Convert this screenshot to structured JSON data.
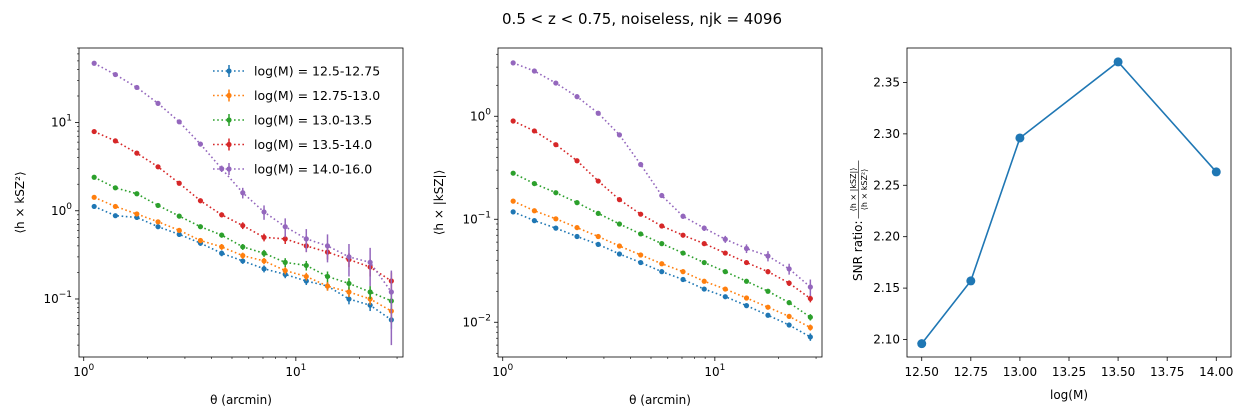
{
  "figure": {
    "title": "0.5 < z < 0.75, noiseless, njk = 4096"
  },
  "chart_data": [
    {
      "type": "line",
      "panel": "left",
      "xscale": "log",
      "yscale": "log",
      "xlabel": "θ (arcmin)",
      "ylabel": "⟨h × kSZ²⟩",
      "xlim": [
        0.95,
        32
      ],
      "ylim": [
        0.022,
        70
      ],
      "xticks": [
        {
          "v": 1,
          "base": "10",
          "exp": "0"
        },
        {
          "v": 10,
          "base": "10",
          "exp": "1"
        }
      ],
      "yticks": [
        {
          "v": 0.1,
          "base": "10",
          "exp": "−1"
        },
        {
          "v": 1,
          "base": "10",
          "exp": "0"
        },
        {
          "v": 10,
          "base": "10",
          "exp": "1"
        }
      ],
      "legend": {
        "position": "top-right"
      },
      "x": [
        1.12,
        1.41,
        1.78,
        2.24,
        2.82,
        3.55,
        4.47,
        5.62,
        7.08,
        8.91,
        11.2,
        14.1,
        17.8,
        22.4,
        28.2
      ],
      "series": [
        {
          "name": "log(M) = 12.5-12.75",
          "color": "#1f77b4",
          "values": [
            1.12,
            0.88,
            0.84,
            0.66,
            0.54,
            0.43,
            0.33,
            0.27,
            0.22,
            0.19,
            0.16,
            0.14,
            0.1,
            0.085,
            0.058
          ],
          "errors": [
            0.06,
            0.05,
            0.05,
            0.04,
            0.035,
            0.03,
            0.025,
            0.02,
            0.02,
            0.018,
            0.016,
            0.015,
            0.013,
            0.012,
            0.012
          ]
        },
        {
          "name": "log(M) = 12.75-13.0",
          "color": "#ff7f0e",
          "values": [
            1.42,
            1.12,
            0.92,
            0.75,
            0.6,
            0.46,
            0.39,
            0.31,
            0.27,
            0.21,
            0.18,
            0.14,
            0.12,
            0.1,
            0.073
          ],
          "errors": [
            0.07,
            0.06,
            0.05,
            0.04,
            0.035,
            0.03,
            0.03,
            0.025,
            0.022,
            0.02,
            0.018,
            0.016,
            0.015,
            0.014,
            0.02
          ]
        },
        {
          "name": "log(M) = 13.0-13.5",
          "color": "#2ca02c",
          "values": [
            2.4,
            1.82,
            1.56,
            1.15,
            0.87,
            0.66,
            0.53,
            0.39,
            0.33,
            0.26,
            0.24,
            0.18,
            0.15,
            0.12,
            0.095
          ],
          "errors": [
            0.12,
            0.09,
            0.08,
            0.06,
            0.05,
            0.04,
            0.035,
            0.03,
            0.03,
            0.03,
            0.03,
            0.025,
            0.022,
            0.02,
            0.018
          ]
        },
        {
          "name": "log(M) = 13.5-14.0",
          "color": "#d62728",
          "values": [
            7.9,
            6.2,
            4.5,
            3.15,
            2.05,
            1.3,
            0.9,
            0.68,
            0.5,
            0.48,
            0.4,
            0.34,
            0.28,
            0.23,
            0.16
          ],
          "errors": [
            0.4,
            0.3,
            0.22,
            0.16,
            0.11,
            0.08,
            0.06,
            0.06,
            0.05,
            0.06,
            0.06,
            0.06,
            0.05,
            0.05,
            0.04
          ]
        },
        {
          "name": "log(M) = 14.0-16.0",
          "color": "#9467bd",
          "values": [
            47,
            35,
            25,
            16.5,
            10.2,
            5.7,
            3.0,
            1.6,
            0.97,
            0.66,
            0.48,
            0.4,
            0.3,
            0.26,
            0.12
          ],
          "errors": [
            2.5,
            1.8,
            1.3,
            0.9,
            0.6,
            0.35,
            0.25,
            0.22,
            0.18,
            0.16,
            0.14,
            0.14,
            0.12,
            0.12,
            0.09
          ]
        }
      ]
    },
    {
      "type": "line",
      "panel": "middle",
      "xscale": "log",
      "yscale": "log",
      "xlabel": "θ (arcmin)",
      "ylabel": "⟨h × |kSZ|⟩",
      "xlim": [
        0.95,
        32
      ],
      "ylim": [
        0.0046,
        4.6
      ],
      "xticks": [
        {
          "v": 1,
          "base": "10",
          "exp": "0"
        },
        {
          "v": 10,
          "base": "10",
          "exp": "1"
        }
      ],
      "yticks": [
        {
          "v": 0.01,
          "base": "10",
          "exp": "−2"
        },
        {
          "v": 0.1,
          "base": "10",
          "exp": "−1"
        },
        {
          "v": 1,
          "base": "10",
          "exp": "0"
        }
      ],
      "x": [
        1.12,
        1.41,
        1.78,
        2.24,
        2.82,
        3.55,
        4.47,
        5.62,
        7.08,
        8.91,
        11.2,
        14.1,
        17.8,
        22.4,
        28.2
      ],
      "series": [
        {
          "name": "log(M) = 12.5-12.75",
          "color": "#1f77b4",
          "values": [
            0.118,
            0.097,
            0.082,
            0.068,
            0.057,
            0.046,
            0.038,
            0.031,
            0.026,
            0.021,
            0.0177,
            0.0145,
            0.0117,
            0.0094,
            0.0072
          ],
          "errors": [
            0.003,
            0.0025,
            0.002,
            0.0017,
            0.0014,
            0.0012,
            0.001,
            0.0008,
            0.0007,
            0.0006,
            0.0005,
            0.0005,
            0.0004,
            0.0004,
            0.0006
          ]
        },
        {
          "name": "log(M) = 12.75-13.0",
          "color": "#ff7f0e",
          "values": [
            0.15,
            0.121,
            0.101,
            0.083,
            0.068,
            0.055,
            0.045,
            0.037,
            0.031,
            0.025,
            0.021,
            0.0172,
            0.014,
            0.0114,
            0.0089
          ],
          "errors": [
            0.004,
            0.003,
            0.0025,
            0.002,
            0.0017,
            0.0014,
            0.0012,
            0.001,
            0.0009,
            0.0008,
            0.0007,
            0.0006,
            0.0005,
            0.0005,
            0.0006
          ]
        },
        {
          "name": "log(M) = 13.0-13.5",
          "color": "#2ca02c",
          "values": [
            0.28,
            0.222,
            0.181,
            0.145,
            0.114,
            0.09,
            0.072,
            0.058,
            0.047,
            0.038,
            0.031,
            0.025,
            0.02,
            0.0155,
            0.0112
          ],
          "errors": [
            0.007,
            0.006,
            0.005,
            0.004,
            0.003,
            0.0025,
            0.002,
            0.0017,
            0.0014,
            0.0012,
            0.001,
            0.0009,
            0.0008,
            0.0008,
            0.0008
          ]
        },
        {
          "name": "log(M) = 13.5-14.0",
          "color": "#d62728",
          "values": [
            0.9,
            0.72,
            0.53,
            0.37,
            0.235,
            0.155,
            0.112,
            0.086,
            0.07,
            0.058,
            0.047,
            0.038,
            0.031,
            0.024,
            0.017
          ],
          "errors": [
            0.025,
            0.02,
            0.015,
            0.01,
            0.007,
            0.005,
            0.004,
            0.003,
            0.003,
            0.0025,
            0.002,
            0.002,
            0.0017,
            0.0015,
            0.0014
          ]
        },
        {
          "name": "log(M) = 14.0-16.0",
          "color": "#9467bd",
          "values": [
            3.3,
            2.75,
            2.1,
            1.55,
            1.07,
            0.66,
            0.34,
            0.17,
            0.107,
            0.082,
            0.064,
            0.052,
            0.044,
            0.033,
            0.022
          ],
          "errors": [
            0.1,
            0.08,
            0.06,
            0.045,
            0.03,
            0.02,
            0.012,
            0.008,
            0.006,
            0.005,
            0.005,
            0.005,
            0.005,
            0.004,
            0.004
          ]
        }
      ]
    },
    {
      "type": "line",
      "panel": "right",
      "xscale": "linear",
      "yscale": "linear",
      "xlabel": "log(M)",
      "ylabel": "SNR ratio:",
      "ylabel_frac_num": "⟨h × |kSZ|⟩",
      "ylabel_frac_den": "⟨h × kSZ²⟩",
      "xlim": [
        12.425,
        14.075
      ],
      "ylim": [
        2.083,
        2.3835
      ],
      "xticks": [
        "12.50",
        "12.75",
        "13.00",
        "13.25",
        "13.50",
        "13.75",
        "14.00"
      ],
      "yticks": [
        "2.10",
        "2.15",
        "2.20",
        "2.25",
        "2.30",
        "2.35"
      ],
      "x": [
        12.5,
        12.75,
        13.0,
        13.5,
        14.0
      ],
      "series": [
        {
          "color": "#1f77b4",
          "values": [
            2.096,
            2.157,
            2.296,
            2.37,
            2.263
          ]
        }
      ]
    }
  ]
}
